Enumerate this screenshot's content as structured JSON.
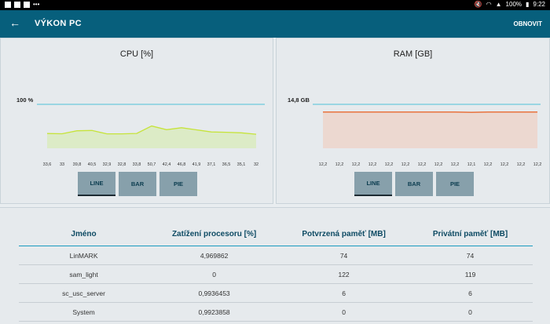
{
  "status_bar": {
    "battery": "100%",
    "time": "9:22",
    "icons": [
      "image-icon",
      "clipboard-icon",
      "app-icon",
      "more-icon",
      "mute-icon",
      "wifi-icon",
      "signal-icon",
      "battery-icon"
    ]
  },
  "app_bar": {
    "back_icon": "arrow-left-icon",
    "title": "VÝKON PC",
    "refresh_label": "OBNOVIT"
  },
  "cpu_panel": {
    "title": "CPU [%]",
    "max_label": "100 %",
    "tabs": [
      "LINE",
      "BAR",
      "PIE"
    ],
    "active_tab": "LINE"
  },
  "ram_panel": {
    "title": "RAM [GB]",
    "max_label": "14,8 GB",
    "tabs": [
      "LINE",
      "BAR",
      "PIE"
    ],
    "active_tab": "LINE"
  },
  "chart_data": [
    {
      "type": "area",
      "title": "CPU [%]",
      "ylim": [
        0,
        100
      ],
      "max_label": "100 %",
      "x_tick_labels": [
        "33,6",
        "33",
        "39,8",
        "40,5",
        "32,9",
        "32,8",
        "33,8",
        "50,7",
        "42,4",
        "46,8",
        "41,9",
        "37,1",
        "36,5",
        "35,1",
        "32"
      ],
      "values": [
        33.6,
        33,
        39.8,
        40.5,
        32.9,
        32.8,
        33.8,
        50.7,
        42.4,
        46.8,
        41.9,
        37.1,
        36.5,
        35.1,
        32
      ],
      "color": "#c6e33a",
      "fill": "#dcebc6"
    },
    {
      "type": "area",
      "title": "RAM [GB]",
      "ylim": [
        0,
        14.8
      ],
      "max_label": "14,8 GB",
      "x_tick_labels": [
        "12,2",
        "12,2",
        "12,2",
        "12,2",
        "12,2",
        "12,2",
        "12,2",
        "12,2",
        "12,2",
        "12,1",
        "12,2",
        "12,2",
        "12,2",
        "12,2"
      ],
      "values": [
        12.2,
        12.2,
        12.2,
        12.2,
        12.2,
        12.2,
        12.2,
        12.2,
        12.2,
        12.1,
        12.2,
        12.2,
        12.2,
        12.2
      ],
      "color": "#e8682e",
      "fill": "#ecd8d0"
    }
  ],
  "process_table": {
    "headers": [
      "Jméno",
      "Zatížení procesoru [%]",
      "Potvrzená paměť [MB]",
      "Privátní paměť [MB]"
    ],
    "rows": [
      [
        "LinMARK",
        "4,969862",
        "74",
        "74"
      ],
      [
        "sam_light",
        "0",
        "122",
        "119"
      ],
      [
        "sc_usc_server",
        "0,9936453",
        "6",
        "6"
      ],
      [
        "System",
        "0,9923858",
        "0",
        "0"
      ]
    ]
  },
  "colors": {
    "app_bar": "#075f7c",
    "header_text": "#0d4a63",
    "header_rule": "#1a9bbf",
    "tab_bg": "#87a0ab"
  }
}
